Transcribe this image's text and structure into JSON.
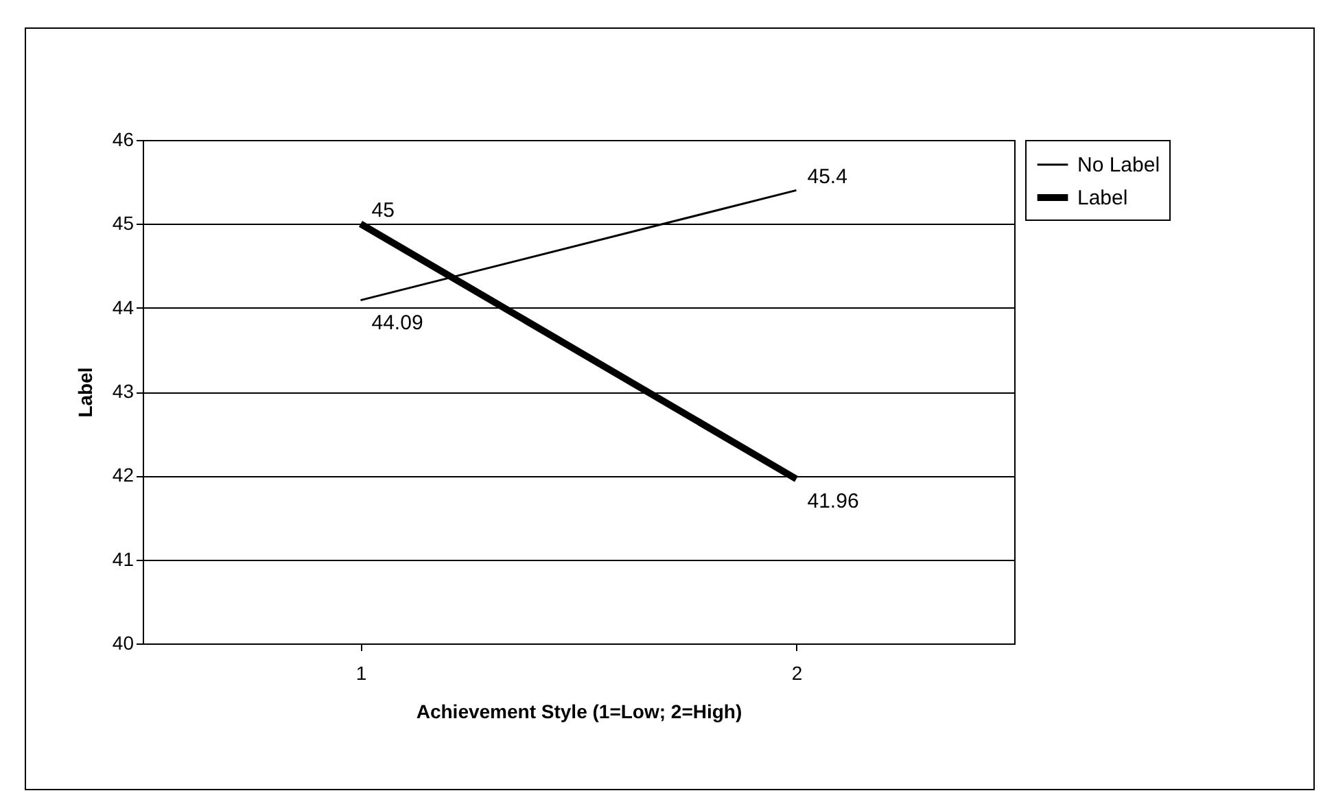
{
  "chart_data": {
    "type": "line",
    "xlabel": "Achievement Style (1=Low; 2=High)",
    "ylabel": "Label",
    "categories": [
      "1",
      "2"
    ],
    "series": [
      {
        "name": "No Label",
        "color": "#000000",
        "values": [
          44.09,
          45.4
        ]
      },
      {
        "name": "Label",
        "color": "#000000",
        "values": [
          45,
          41.96
        ]
      }
    ],
    "ylim": [
      40,
      46
    ],
    "yticks": [
      40,
      41,
      42,
      43,
      44,
      45,
      46
    ],
    "grid": "y",
    "legend": "right",
    "data_labels": true,
    "marker": "none",
    "line_style": "solid"
  }
}
